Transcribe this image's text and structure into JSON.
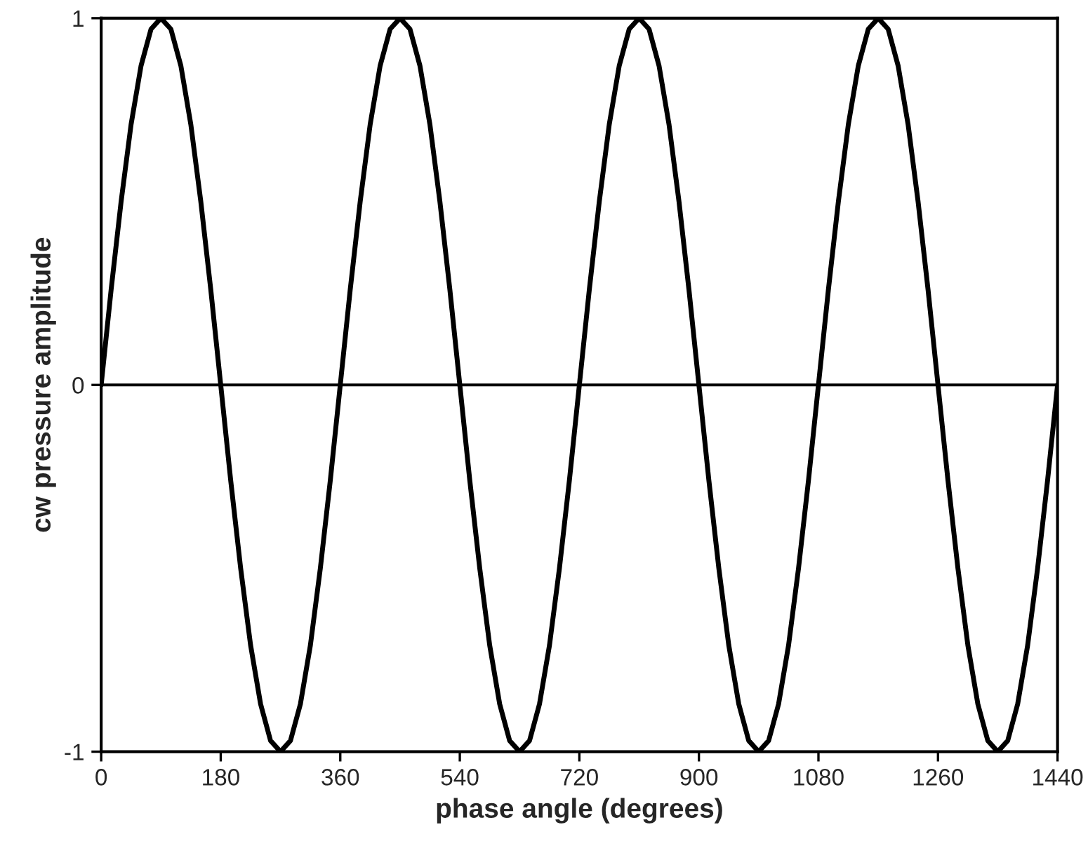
{
  "chart_data": {
    "type": "line",
    "xlabel": "phase angle (degrees)",
    "ylabel": "cw pressure amplitude",
    "x": [
      0,
      15,
      30,
      45,
      60,
      75,
      90,
      105,
      120,
      135,
      150,
      165,
      180,
      195,
      210,
      225,
      240,
      255,
      270,
      285,
      300,
      315,
      330,
      345,
      360,
      375,
      390,
      405,
      420,
      435,
      450,
      465,
      480,
      495,
      510,
      525,
      540,
      555,
      570,
      585,
      600,
      615,
      630,
      645,
      660,
      675,
      690,
      705,
      720,
      735,
      750,
      765,
      780,
      795,
      810,
      825,
      840,
      855,
      870,
      885,
      900,
      915,
      930,
      945,
      960,
      975,
      990,
      1005,
      1020,
      1035,
      1050,
      1065,
      1080,
      1095,
      1110,
      1125,
      1140,
      1155,
      1170,
      1185,
      1200,
      1215,
      1230,
      1245,
      1260,
      1275,
      1290,
      1305,
      1320,
      1335,
      1350,
      1365,
      1380,
      1395,
      1410,
      1425,
      1440
    ],
    "series": [
      {
        "color": "#000000",
        "values": [
          0,
          0.26,
          0.5,
          0.71,
          0.87,
          0.97,
          1,
          0.97,
          0.87,
          0.71,
          0.5,
          0.26,
          0,
          -0.26,
          -0.5,
          -0.71,
          -0.87,
          -0.97,
          -1,
          -0.97,
          -0.87,
          -0.71,
          -0.5,
          -0.26,
          0,
          0.26,
          0.5,
          0.71,
          0.87,
          0.97,
          1,
          0.97,
          0.87,
          0.71,
          0.5,
          0.26,
          0,
          -0.26,
          -0.5,
          -0.71,
          -0.87,
          -0.97,
          -1,
          -0.97,
          -0.87,
          -0.71,
          -0.5,
          -0.26,
          0,
          0.26,
          0.5,
          0.71,
          0.87,
          0.97,
          1,
          0.97,
          0.87,
          0.71,
          0.5,
          0.26,
          0,
          -0.26,
          -0.5,
          -0.71,
          -0.87,
          -0.97,
          -1,
          -0.97,
          -0.87,
          -0.71,
          -0.5,
          -0.26,
          0,
          0.26,
          0.5,
          0.71,
          0.87,
          0.97,
          1,
          0.97,
          0.87,
          0.71,
          0.5,
          0.26,
          0,
          -0.26,
          -0.5,
          -0.71,
          -0.87,
          -0.97,
          -1,
          -0.97,
          -0.87,
          -0.71,
          -0.5,
          -0.26,
          0
        ]
      }
    ],
    "xlim": [
      0,
      1440
    ],
    "xticks": [
      0,
      180,
      360,
      540,
      720,
      900,
      1080,
      1260,
      1440
    ],
    "ylim": [
      -1,
      1
    ],
    "yticks": [
      -1,
      0,
      1
    ],
    "ref_lines": [
      {
        "axis": "y",
        "value": 0,
        "color": "#000000"
      }
    ],
    "grid": false,
    "legend": false,
    "marker": "none",
    "line_style": "solid"
  }
}
